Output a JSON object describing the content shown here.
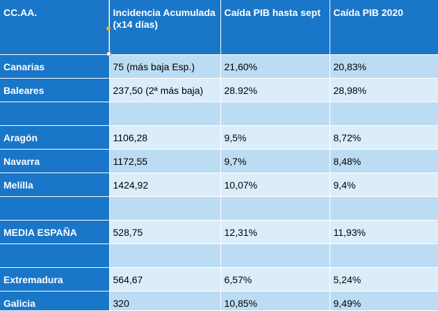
{
  "header": {
    "col0": "CC.AA.",
    "col1": "Incidencia Acumulada (x14 días)",
    "col2": "Caída PIB hasta sept",
    "col3": "Caída PIB 2020"
  },
  "rows": [
    {
      "region": "Canarias",
      "incidence": "75 (más baja Esp.)",
      "gdp_sept": "21,60%",
      "gdp_2020": "20,83%"
    },
    {
      "region": "Baleares",
      "incidence": "237,50 (2ª más baja)",
      "gdp_sept": "28.92%",
      "gdp_2020": "28,98%"
    },
    {
      "region": "",
      "incidence": "",
      "gdp_sept": "",
      "gdp_2020": ""
    },
    {
      "region": "Aragón",
      "incidence": "1106,28",
      "gdp_sept": "9,5%",
      "gdp_2020": "8,72%"
    },
    {
      "region": "Navarra",
      "incidence": "1172,55",
      "gdp_sept": "9,7%",
      "gdp_2020": "8,48%"
    },
    {
      "region": "Melilla",
      "incidence": "1424,92",
      "gdp_sept": "10,07%",
      "gdp_2020": "9,4%"
    },
    {
      "region": "",
      "incidence": "",
      "gdp_sept": "",
      "gdp_2020": ""
    },
    {
      "region": "MEDIA ESPAÑA",
      "incidence": "528,75",
      "gdp_sept": "12,31%",
      "gdp_2020": "11,93%"
    },
    {
      "region": "",
      "incidence": "",
      "gdp_sept": "",
      "gdp_2020": ""
    },
    {
      "region": "Extremadura",
      "incidence": "564,67",
      "gdp_sept": "6,57%",
      "gdp_2020": "5,24%"
    },
    {
      "region": "Galicia",
      "incidence": "320",
      "gdp_sept": "10,85%",
      "gdp_2020": "9,49%"
    }
  ],
  "colors": {
    "header_bg": "#1a76c8",
    "row_dark": "#bcdcf4",
    "row_light": "#dcedfa"
  }
}
